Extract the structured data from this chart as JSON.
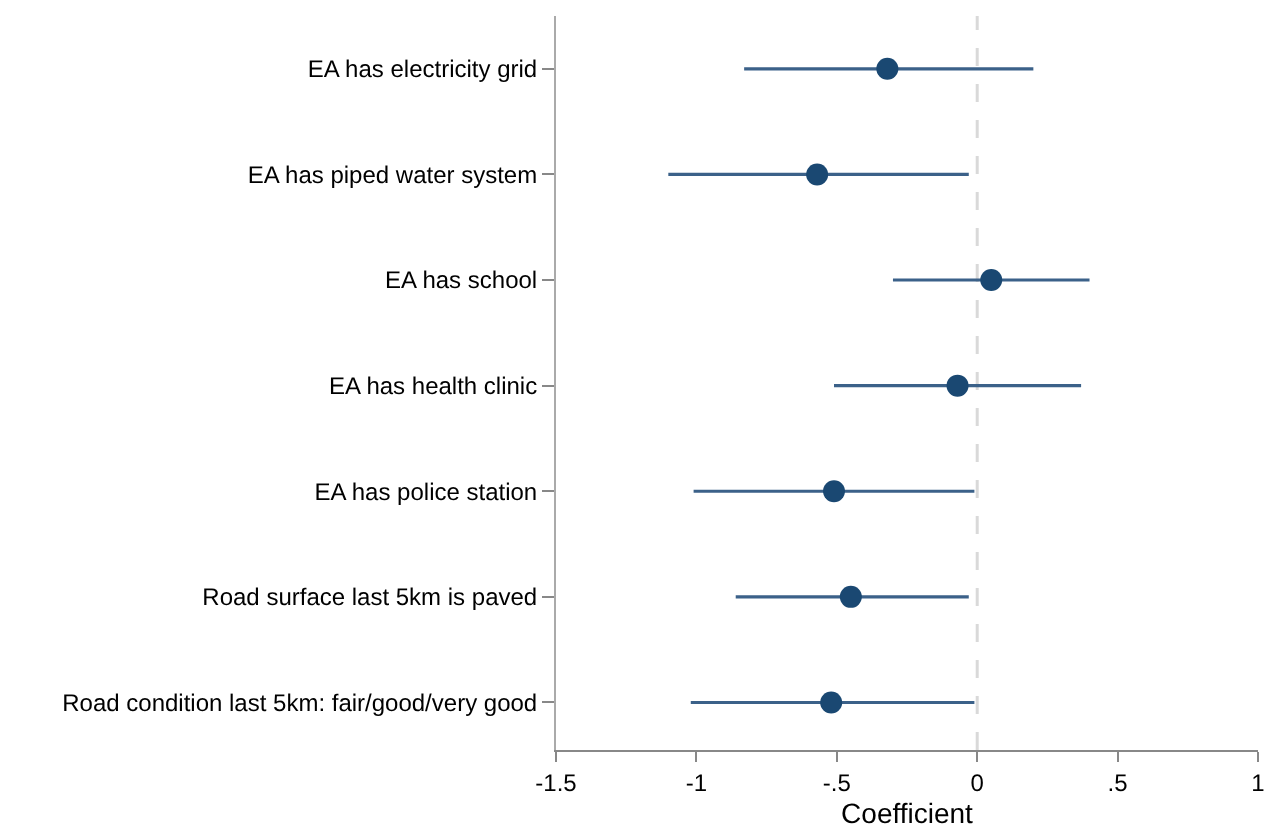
{
  "chart_data": {
    "type": "scatter",
    "orientation": "horizontal",
    "xlabel": "Coefficient",
    "categories": [
      "EA has electricity grid",
      "EA has piped water system",
      "EA has school",
      "EA has health clinic",
      "EA has police station",
      "Road surface last 5km is paved",
      "Road condition last 5km: fair/good/very good"
    ],
    "values": [
      -0.32,
      -0.57,
      0.05,
      -0.07,
      -0.51,
      -0.45,
      -0.52
    ],
    "errors": [
      [
        -0.83,
        0.2
      ],
      [
        -1.1,
        -0.03
      ],
      [
        -0.3,
        0.4
      ],
      [
        -0.51,
        0.37
      ],
      [
        -1.01,
        -0.01
      ],
      [
        -0.86,
        -0.03
      ],
      [
        -1.02,
        -0.01
      ]
    ],
    "color": "#1a4872",
    "marker": "circle",
    "grid": false,
    "legend": false,
    "xlim": [
      -1.5,
      1
    ],
    "xticks": [
      -1.5,
      -1,
      {
        "value": -0.5,
        "label": "-.5"
      },
      0,
      {
        "value": 0.5,
        "label": ".5"
      },
      1
    ],
    "ref_lines": [
      {
        "axis": "x",
        "value": 0,
        "color": "#d9d9d9",
        "line_style": "dashed"
      }
    ]
  }
}
